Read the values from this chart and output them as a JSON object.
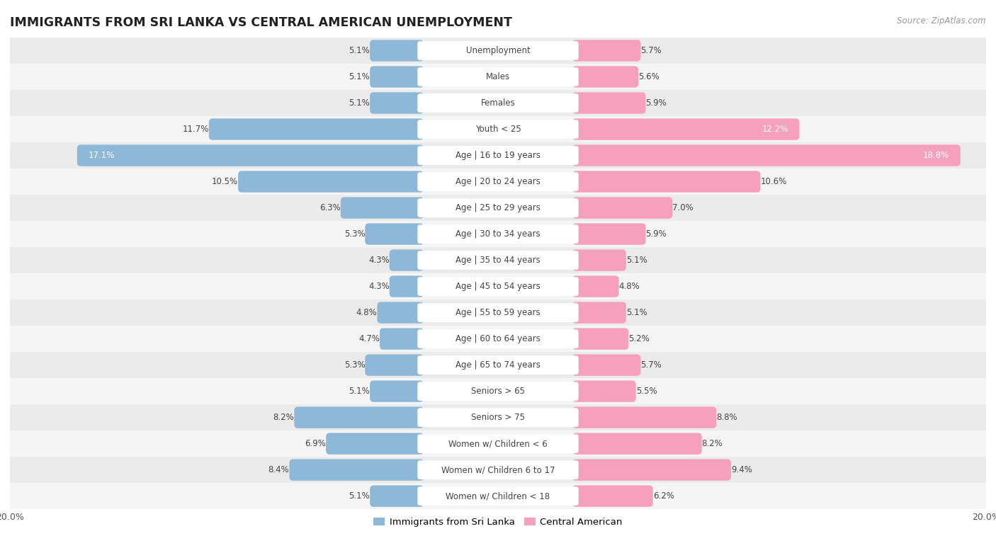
{
  "title": "IMMIGRANTS FROM SRI LANKA VS CENTRAL AMERICAN UNEMPLOYMENT",
  "source": "Source: ZipAtlas.com",
  "categories": [
    "Unemployment",
    "Males",
    "Females",
    "Youth < 25",
    "Age | 16 to 19 years",
    "Age | 20 to 24 years",
    "Age | 25 to 29 years",
    "Age | 30 to 34 years",
    "Age | 35 to 44 years",
    "Age | 45 to 54 years",
    "Age | 55 to 59 years",
    "Age | 60 to 64 years",
    "Age | 65 to 74 years",
    "Seniors > 65",
    "Seniors > 75",
    "Women w/ Children < 6",
    "Women w/ Children 6 to 17",
    "Women w/ Children < 18"
  ],
  "sri_lanka": [
    5.1,
    5.1,
    5.1,
    11.7,
    17.1,
    10.5,
    6.3,
    5.3,
    4.3,
    4.3,
    4.8,
    4.7,
    5.3,
    5.1,
    8.2,
    6.9,
    8.4,
    5.1
  ],
  "central_american": [
    5.7,
    5.6,
    5.9,
    12.2,
    18.8,
    10.6,
    7.0,
    5.9,
    5.1,
    4.8,
    5.1,
    5.2,
    5.7,
    5.5,
    8.8,
    8.2,
    9.4,
    6.2
  ],
  "sri_lanka_color": "#8db8d8",
  "central_american_color": "#f5a0bc",
  "background_color": "#ffffff",
  "row_bg_even": "#ebebeb",
  "row_bg_odd": "#f5f5f5",
  "max_val": 20.0,
  "bar_height": 0.52,
  "label_fontsize": 8.5,
  "title_fontsize": 12.5,
  "source_fontsize": 8.5
}
